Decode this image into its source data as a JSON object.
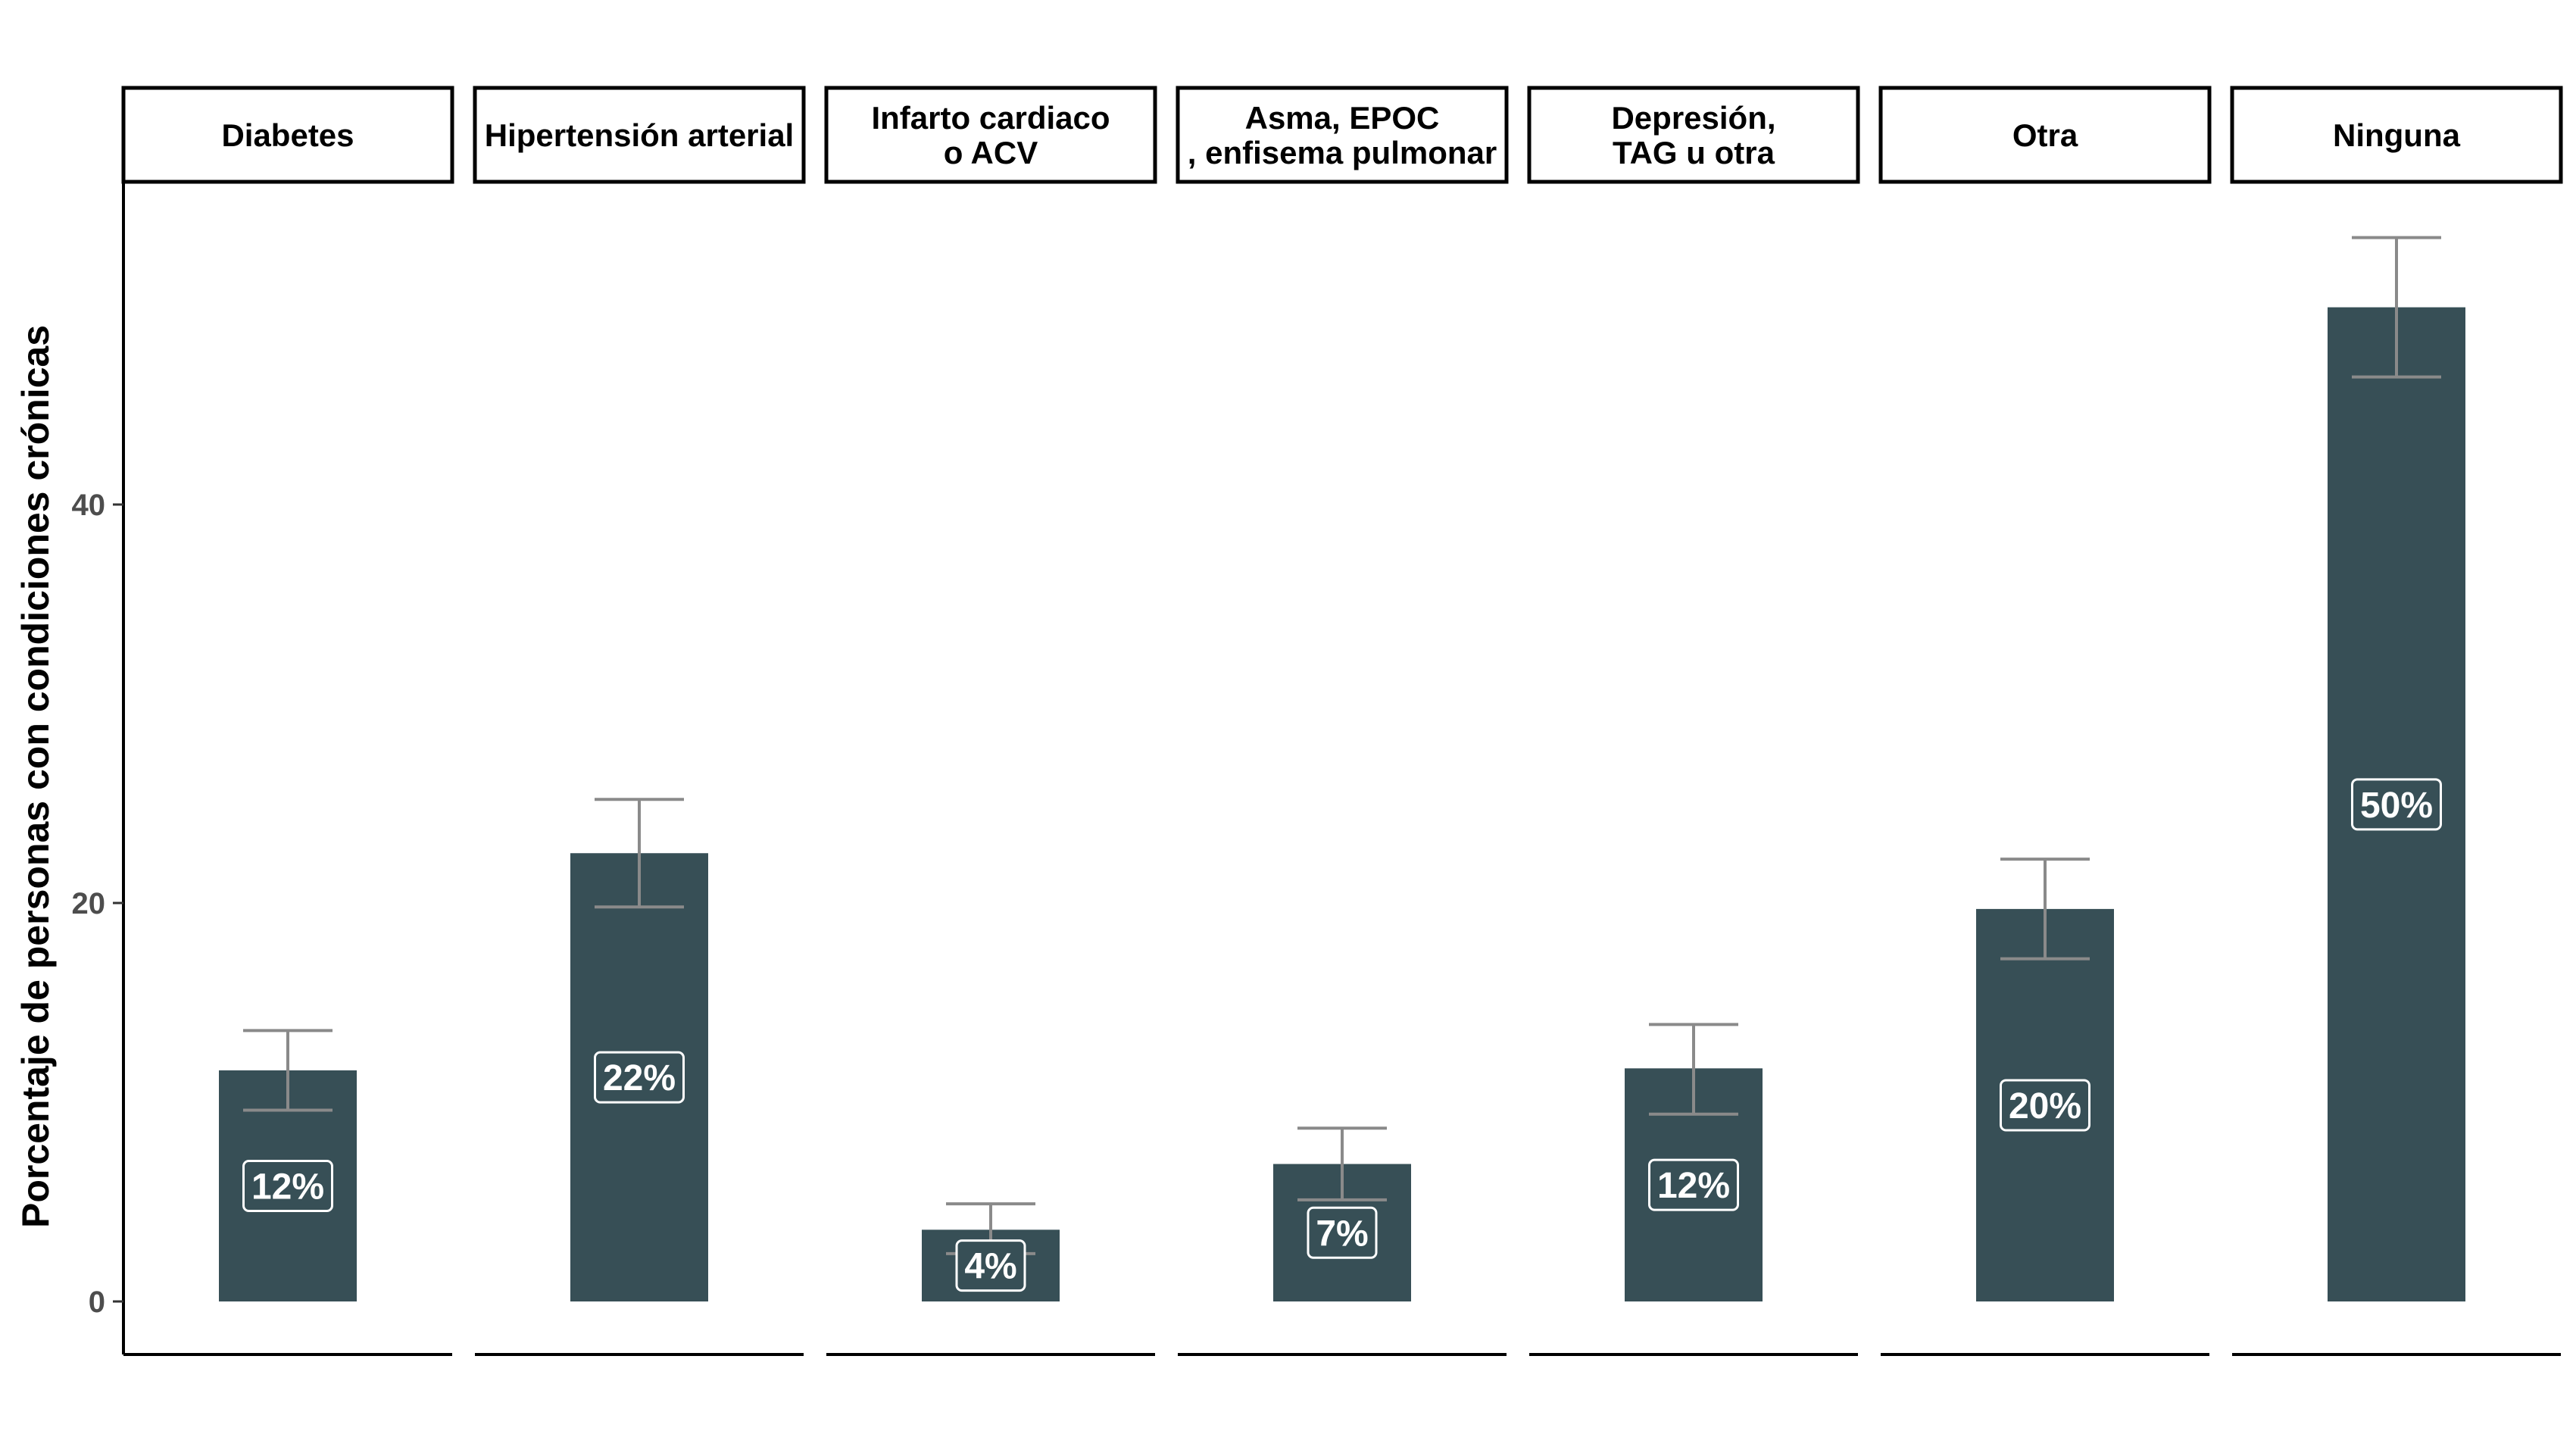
{
  "chart_data": {
    "type": "bar",
    "ylabel": "Porcentaje de personas con condiciones crónicas",
    "ylim": [
      0,
      55
    ],
    "yticks": [
      0,
      20,
      40
    ],
    "grid": false,
    "colors": {
      "bar": "#374f56",
      "errorbar": "#8a8a8a",
      "axis": "#000000"
    },
    "panels": [
      {
        "strip": [
          "Diabetes"
        ],
        "value": 11.6,
        "error_low": 9.6,
        "error_high": 13.6,
        "label": "12%"
      },
      {
        "strip": [
          "Hipertensión arterial"
        ],
        "value": 22.5,
        "error_low": 19.8,
        "error_high": 25.2,
        "label": "22%"
      },
      {
        "strip": [
          "Infarto cardiaco",
          "o ACV"
        ],
        "value": 3.6,
        "error_low": 2.4,
        "error_high": 4.9,
        "label": "4%"
      },
      {
        "strip": [
          "Asma, EPOC",
          ", enfisema pulmonar"
        ],
        "value": 6.9,
        "error_low": 5.1,
        "error_high": 8.7,
        "label": "7%"
      },
      {
        "strip": [
          "Depresión,",
          "TAG u otra"
        ],
        "value": 11.7,
        "error_low": 9.4,
        "error_high": 13.9,
        "label": "12%"
      },
      {
        "strip": [
          "Otra"
        ],
        "value": 19.7,
        "error_low": 17.2,
        "error_high": 22.2,
        "label": "20%"
      },
      {
        "strip": [
          "Ninguna"
        ],
        "value": 49.9,
        "error_low": 46.4,
        "error_high": 53.4,
        "label": "50%"
      }
    ]
  }
}
